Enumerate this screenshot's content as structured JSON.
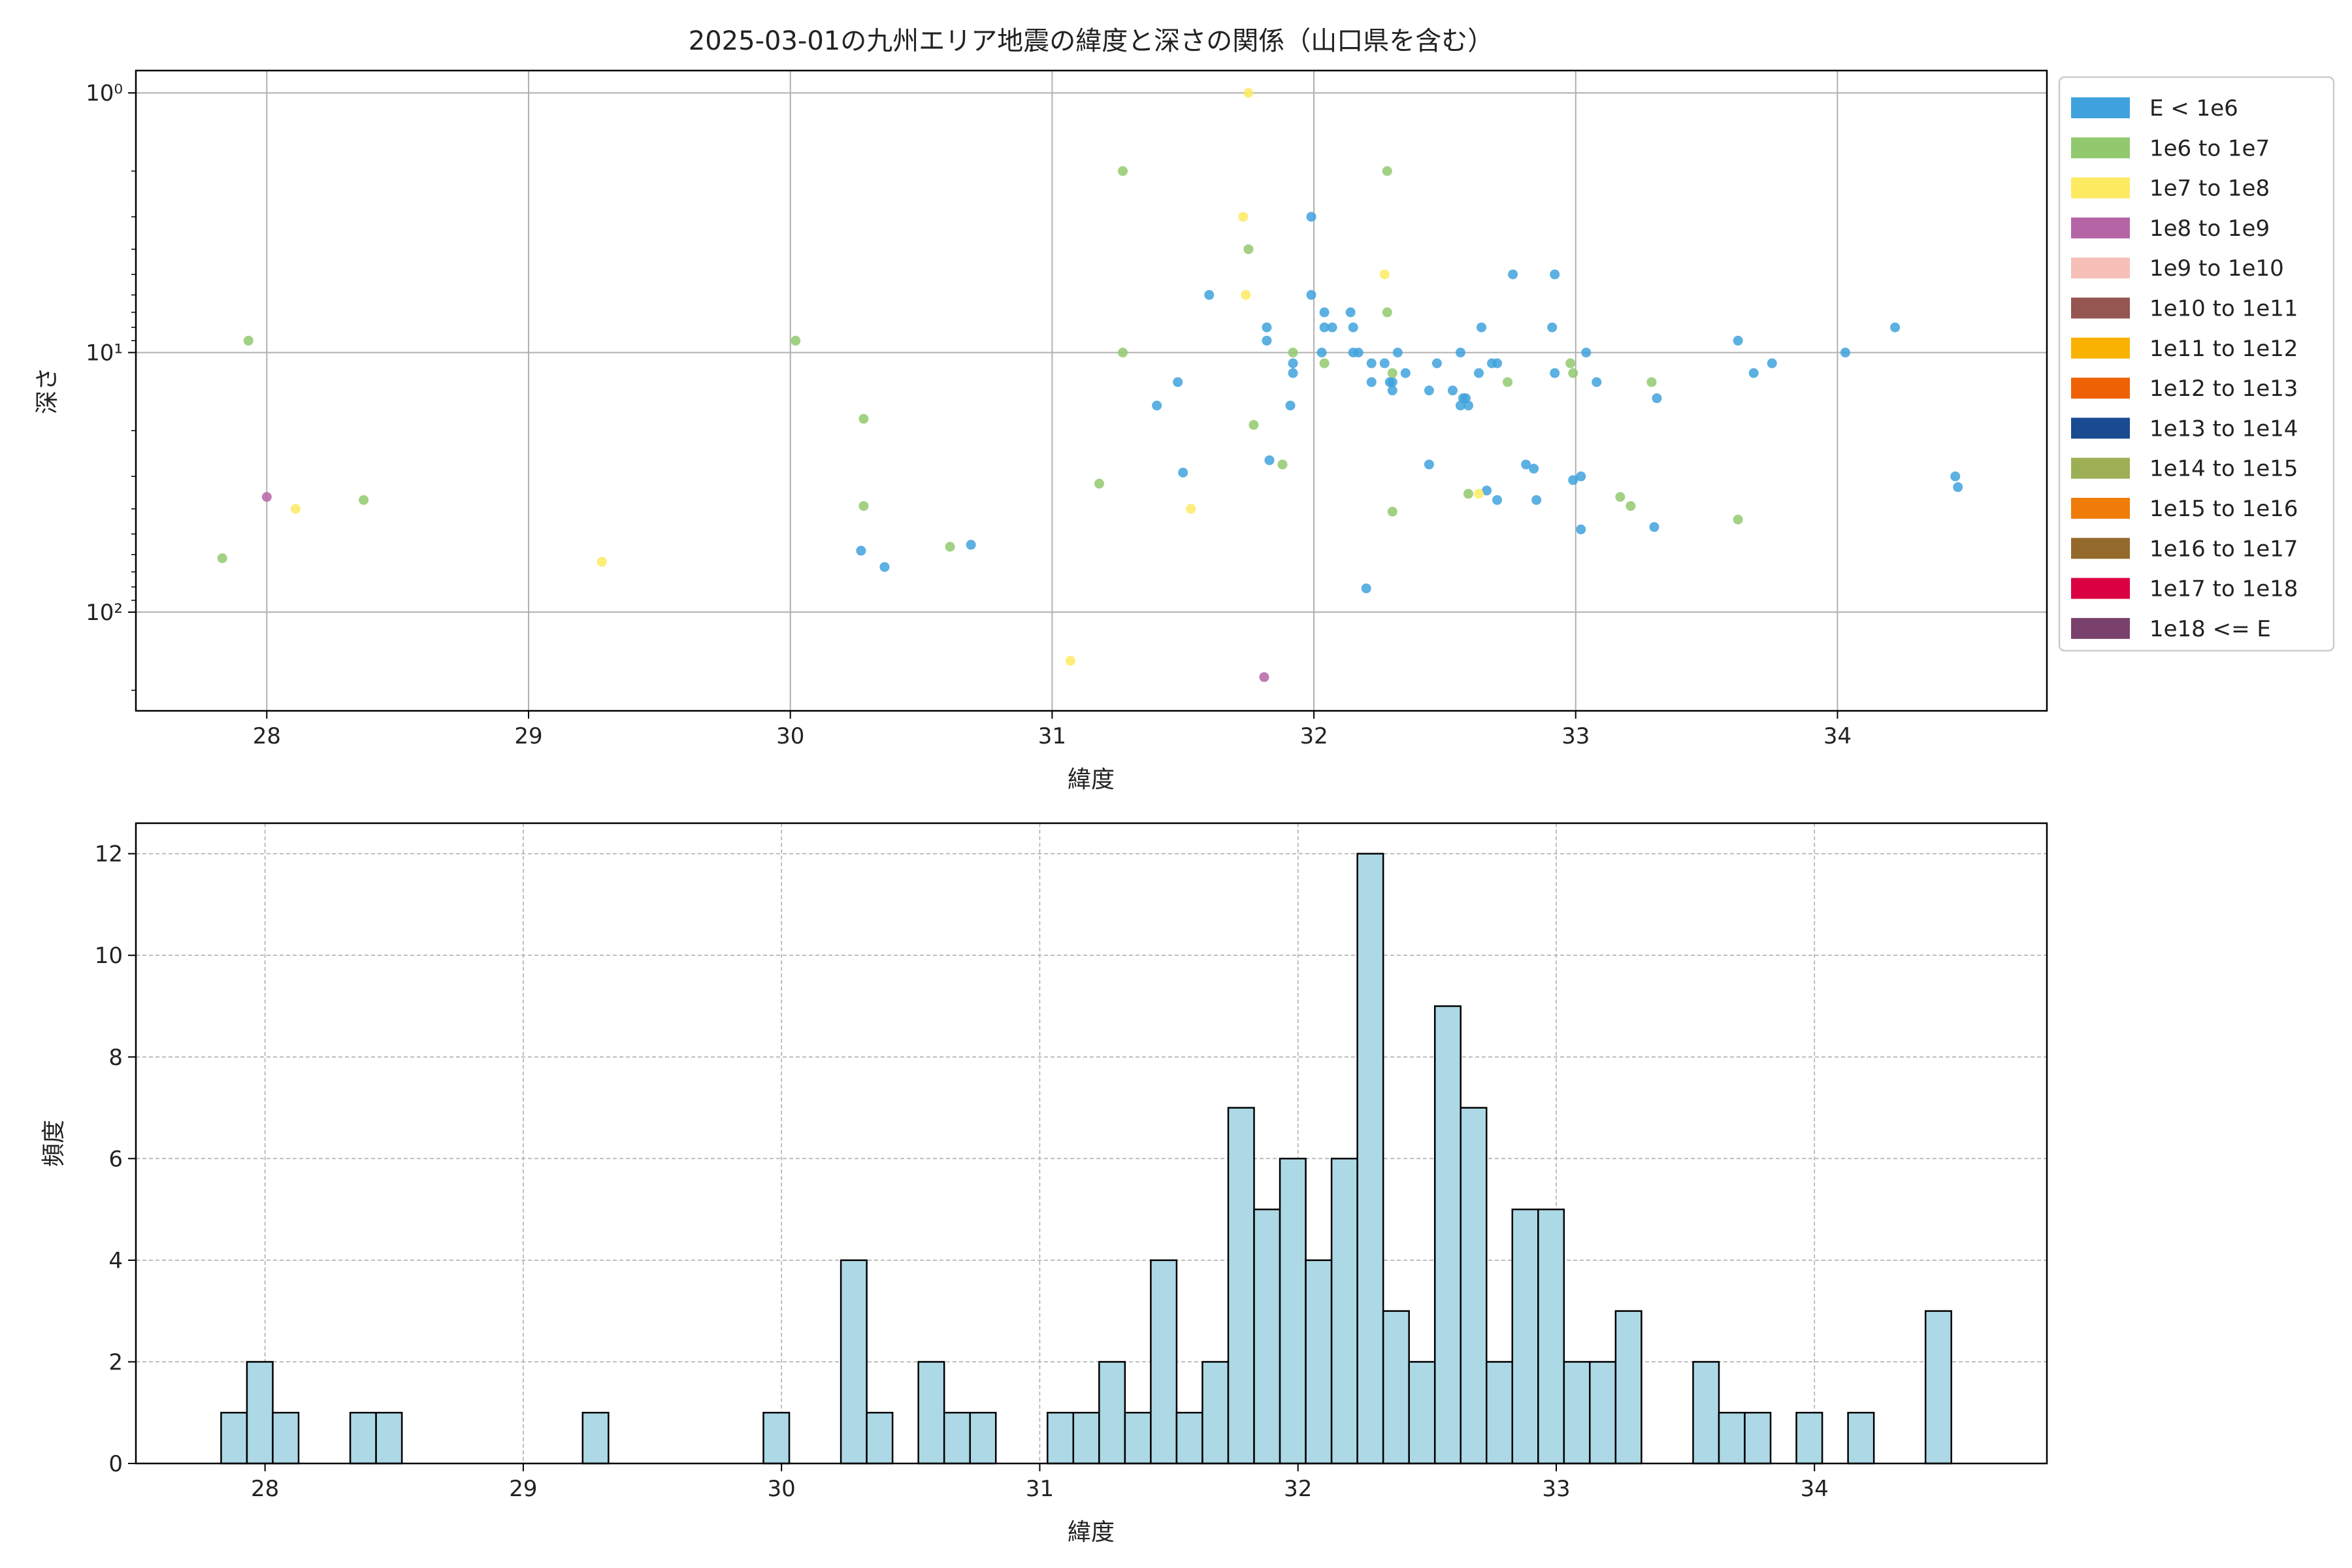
{
  "title": "2025-03-01の九州エリア地震の緯度と深さの関係（山口県を含む）",
  "chart_data": [
    {
      "type": "scatter",
      "xlabel": "緯度",
      "ylabel": "深さ",
      "xlim": [
        27.5,
        34.8
      ],
      "ylim": [
        240,
        0.82
      ],
      "y_scale": "log",
      "y_inverted": true,
      "x_ticks": [
        "28",
        "29",
        "30",
        "31",
        "32",
        "33",
        "34"
      ],
      "y_ticks": [
        {
          "value": 1,
          "label": "10⁰"
        },
        {
          "value": 10,
          "label": "10¹"
        },
        {
          "value": 100,
          "label": "10²"
        }
      ],
      "grid": true,
      "legend_position": "outside-right",
      "legend": [
        {
          "label": "E < 1e6",
          "color": "#3fa2dd"
        },
        {
          "label": "1e6 to 1e7",
          "color": "#92c96e"
        },
        {
          "label": "1e7 to 1e8",
          "color": "#fdea61"
        },
        {
          "label": "1e8 to 1e9",
          "color": "#b565a6"
        },
        {
          "label": "1e9 to 1e10",
          "color": "#f6c0b8"
        },
        {
          "label": "1e10 to 1e11",
          "color": "#955550"
        },
        {
          "label": "1e11 to 1e12",
          "color": "#f9b200"
        },
        {
          "label": "1e12 to 1e13",
          "color": "#ee6205"
        },
        {
          "label": "1e13 to 1e14",
          "color": "#1a4b91"
        },
        {
          "label": "1e14 to 1e15",
          "color": "#9caf55"
        },
        {
          "label": "1e15 to 1e16",
          "color": "#ef7c08"
        },
        {
          "label": "1e16 to 1e17",
          "color": "#946a2c"
        },
        {
          "label": "1e17 to 1e18",
          "color": "#db0041"
        },
        {
          "label": "1e18 <= E",
          "color": "#7a416c"
        }
      ],
      "points": [
        [
          34.22,
          8,
          0
        ],
        [
          34.03,
          10,
          0
        ],
        [
          33.75,
          11,
          0
        ],
        [
          33.68,
          12,
          0
        ],
        [
          33.62,
          9,
          0
        ],
        [
          34.45,
          30,
          0
        ],
        [
          34.46,
          33,
          0
        ],
        [
          33.3,
          47,
          0
        ],
        [
          33.31,
          15,
          0
        ],
        [
          33.08,
          13,
          0
        ],
        [
          33.04,
          10,
          0
        ],
        [
          33.02,
          30,
          0
        ],
        [
          33.02,
          48,
          0
        ],
        [
          32.99,
          31,
          0
        ],
        [
          32.91,
          8,
          0
        ],
        [
          32.92,
          5,
          0
        ],
        [
          32.92,
          12,
          0
        ],
        [
          32.85,
          37,
          0
        ],
        [
          32.84,
          28,
          0
        ],
        [
          32.81,
          27,
          0
        ],
        [
          32.7,
          11,
          0
        ],
        [
          32.68,
          11,
          0
        ],
        [
          32.66,
          34,
          0
        ],
        [
          32.7,
          37,
          0
        ],
        [
          32.63,
          12,
          0
        ],
        [
          32.64,
          8,
          0
        ],
        [
          32.76,
          5,
          0
        ],
        [
          32.59,
          16,
          0
        ],
        [
          32.58,
          15,
          0
        ],
        [
          32.56,
          16,
          0
        ],
        [
          32.57,
          15,
          0
        ],
        [
          32.53,
          14,
          0
        ],
        [
          32.56,
          10,
          0
        ],
        [
          32.47,
          11,
          0
        ],
        [
          32.44,
          14,
          0
        ],
        [
          32.44,
          27,
          0
        ],
        [
          32.35,
          12,
          0
        ],
        [
          32.32,
          10,
          0
        ],
        [
          32.3,
          13,
          0
        ],
        [
          32.27,
          11,
          0
        ],
        [
          32.29,
          13,
          0
        ],
        [
          32.3,
          14,
          0
        ],
        [
          32.22,
          11,
          0
        ],
        [
          32.22,
          13,
          0
        ],
        [
          32.2,
          81,
          0
        ],
        [
          32.17,
          10,
          0
        ],
        [
          32.15,
          10,
          0
        ],
        [
          32.15,
          8,
          0
        ],
        [
          32.14,
          7,
          0
        ],
        [
          32.07,
          8,
          0
        ],
        [
          32.04,
          8,
          0
        ],
        [
          32.04,
          7,
          0
        ],
        [
          32.03,
          10,
          0
        ],
        [
          31.99,
          6,
          0
        ],
        [
          31.99,
          3,
          0
        ],
        [
          31.92,
          11,
          0
        ],
        [
          31.92,
          12,
          0
        ],
        [
          31.91,
          16,
          0
        ],
        [
          31.82,
          9,
          0
        ],
        [
          31.82,
          8,
          0
        ],
        [
          31.83,
          26,
          0
        ],
        [
          31.6,
          6,
          0
        ],
        [
          31.48,
          13,
          0
        ],
        [
          31.4,
          16,
          0
        ],
        [
          31.5,
          29,
          0
        ],
        [
          30.27,
          58,
          0
        ],
        [
          30.36,
          67,
          0
        ],
        [
          30.69,
          55,
          0
        ],
        [
          31.27,
          2,
          1
        ],
        [
          32.28,
          2,
          1
        ],
        [
          31.75,
          4,
          1
        ],
        [
          32.28,
          7,
          1
        ],
        [
          31.92,
          10,
          1
        ],
        [
          32.04,
          11,
          1
        ],
        [
          31.27,
          10,
          1
        ],
        [
          32.3,
          12,
          1
        ],
        [
          33.29,
          13,
          1
        ],
        [
          32.98,
          11,
          1
        ],
        [
          32.99,
          12,
          1
        ],
        [
          32.74,
          13,
          1
        ],
        [
          31.77,
          19,
          1
        ],
        [
          31.88,
          27,
          1
        ],
        [
          31.18,
          32,
          1
        ],
        [
          32.59,
          35,
          1
        ],
        [
          32.3,
          41,
          1
        ],
        [
          33.17,
          36,
          1
        ],
        [
          33.21,
          39,
          1
        ],
        [
          33.62,
          44,
          1
        ],
        [
          30.28,
          18,
          1
        ],
        [
          30.28,
          39,
          1
        ],
        [
          30.61,
          56,
          1
        ],
        [
          30.02,
          9,
          1
        ],
        [
          27.93,
          9,
          1
        ],
        [
          28.37,
          37,
          1
        ],
        [
          27.83,
          62,
          1
        ],
        [
          31.75,
          1,
          2
        ],
        [
          31.73,
          3,
          2
        ],
        [
          31.74,
          6,
          2
        ],
        [
          32.27,
          5,
          2
        ],
        [
          32.63,
          35,
          2
        ],
        [
          31.53,
          40,
          2
        ],
        [
          28.11,
          40,
          2
        ],
        [
          29.28,
          64,
          2
        ],
        [
          31.07,
          154,
          2
        ],
        [
          28.0,
          36,
          3
        ],
        [
          31.81,
          178,
          3
        ]
      ],
      "point_fields": [
        "latitude",
        "depth",
        "legend_index"
      ]
    },
    {
      "type": "bar",
      "xlabel": "緯度",
      "ylabel": "頻度",
      "xlim": [
        27.5,
        34.9
      ],
      "ylim": [
        0,
        12.6
      ],
      "x_ticks": [
        "28",
        "29",
        "30",
        "31",
        "32",
        "33",
        "34"
      ],
      "y_ticks": [
        "0",
        "2",
        "4",
        "6",
        "8",
        "10",
        "12"
      ],
      "grid": true,
      "bar_color": "#add8e6",
      "bin_start": 27.83,
      "bin_width": 0.1,
      "values": [
        1,
        2,
        1,
        0,
        0,
        1,
        1,
        0,
        0,
        0,
        0,
        0,
        0,
        0,
        1,
        0,
        0,
        0,
        0,
        0,
        0,
        1,
        0,
        0,
        4,
        1,
        0,
        2,
        1,
        1,
        0,
        0,
        1,
        1,
        2,
        1,
        4,
        1,
        2,
        7,
        5,
        6,
        4,
        6,
        12,
        3,
        2,
        9,
        7,
        2,
        5,
        5,
        2,
        2,
        3,
        0,
        0,
        2,
        1,
        1,
        0,
        1,
        0,
        1,
        0,
        0,
        3
      ]
    }
  ]
}
